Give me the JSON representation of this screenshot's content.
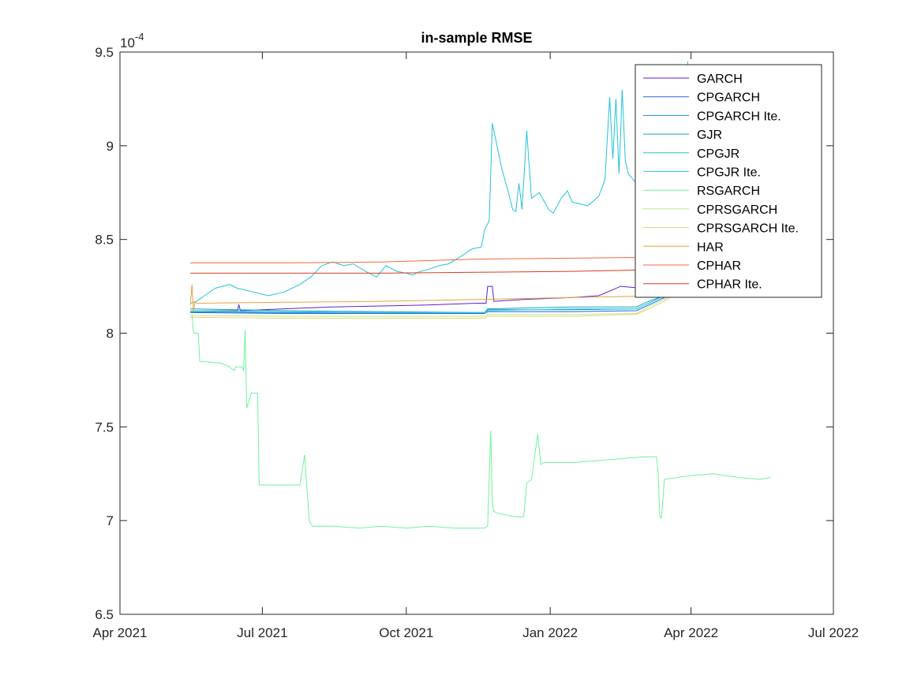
{
  "chart_data": {
    "type": "line",
    "title": "in-sample RMSE",
    "xlabel": "",
    "ylabel": "",
    "y_exponent_label": "10",
    "y_exponent_power": "-4",
    "y_scale_factor": 0.0001,
    "xlim": [
      "2021-04-01",
      "2022-07-01"
    ],
    "ylim": [
      6.5,
      9.5
    ],
    "x_ticks": [
      {
        "date": "2021-04-01",
        "label": "Apr 2021"
      },
      {
        "date": "2021-07-01",
        "label": "Jul 2021"
      },
      {
        "date": "2021-10-01",
        "label": "Oct 2021"
      },
      {
        "date": "2022-01-01",
        "label": "Jan 2022"
      },
      {
        "date": "2022-04-01",
        "label": "Apr 2022"
      },
      {
        "date": "2022-07-01",
        "label": "Jul 2022"
      }
    ],
    "y_ticks": [
      {
        "value": 6.5,
        "label": "6.5"
      },
      {
        "value": 7,
        "label": "7"
      },
      {
        "value": 7.5,
        "label": "7.5"
      },
      {
        "value": 8,
        "label": "8"
      },
      {
        "value": 8.5,
        "label": "8.5"
      },
      {
        "value": 9,
        "label": "9"
      },
      {
        "value": 9.5,
        "label": "9.5"
      }
    ],
    "grid": false,
    "legend_position": "top-right",
    "series": [
      {
        "name": "GARCH",
        "color": "#5a1fd1",
        "x": [
          "2021-05-16",
          "2021-06-15",
          "2021-06-16",
          "2021-06-17",
          "2021-07-15",
          "2021-08-15",
          "2021-09-15",
          "2021-10-15",
          "2021-11-15",
          "2021-11-21",
          "2021-11-22",
          "2021-11-25",
          "2021-11-26",
          "2021-12-15",
          "2022-01-15",
          "2022-02-01",
          "2022-02-15",
          "2022-03-01",
          "2022-03-15"
        ],
        "y": [
          8.12,
          8.12,
          8.15,
          8.12,
          8.13,
          8.14,
          8.145,
          8.15,
          8.16,
          8.16,
          8.25,
          8.25,
          8.17,
          8.18,
          8.19,
          8.2,
          8.25,
          8.24,
          8.23
        ]
      },
      {
        "name": "CPGARCH",
        "color": "#2660e8",
        "x": [
          "2021-05-16",
          "2021-07-15",
          "2021-09-15",
          "2021-11-20",
          "2021-11-22",
          "2022-01-15",
          "2022-02-25",
          "2022-03-05",
          "2022-03-15",
          "2022-03-20"
        ],
        "y": [
          8.11,
          8.105,
          8.105,
          8.105,
          8.115,
          8.115,
          8.12,
          8.15,
          8.19,
          8.22
        ]
      },
      {
        "name": "CPGARCH Ite.",
        "color": "#1d8cd2",
        "x": [
          "2021-05-16",
          "2021-07-15",
          "2021-09-15",
          "2021-11-20",
          "2021-11-22",
          "2022-01-15",
          "2022-02-25",
          "2022-03-05",
          "2022-03-15",
          "2022-03-20"
        ],
        "y": [
          8.115,
          8.11,
          8.11,
          8.11,
          8.125,
          8.125,
          8.13,
          8.16,
          8.2,
          8.23
        ]
      },
      {
        "name": "GJR",
        "color": "#1aa6bd",
        "x": [
          "2021-05-16",
          "2021-07-15",
          "2021-09-15",
          "2021-11-20",
          "2021-11-22",
          "2022-01-15",
          "2022-02-25",
          "2022-03-05",
          "2022-03-15",
          "2022-03-20"
        ],
        "y": [
          8.13,
          8.12,
          8.115,
          8.11,
          8.13,
          8.14,
          8.14,
          8.17,
          8.2,
          8.24
        ]
      },
      {
        "name": "CPGJR",
        "color": "#22c3d5",
        "x": [
          "2021-05-16",
          "2021-05-20",
          "2021-05-25",
          "2021-06-01",
          "2021-06-10",
          "2021-06-15",
          "2021-06-25",
          "2021-07-05",
          "2021-07-15",
          "2021-07-25",
          "2021-08-01",
          "2021-08-08",
          "2021-08-15",
          "2021-08-22",
          "2021-08-28",
          "2021-09-05",
          "2021-09-12",
          "2021-09-18",
          "2021-09-25",
          "2021-10-01",
          "2021-10-05",
          "2021-10-10",
          "2021-10-15",
          "2021-10-22",
          "2021-10-28",
          "2021-11-05",
          "2021-11-12",
          "2021-11-18",
          "2021-11-20",
          "2021-11-23",
          "2021-11-25",
          "2021-12-01",
          "2021-12-05",
          "2021-12-08",
          "2021-12-10",
          "2021-12-12",
          "2021-12-14",
          "2021-12-17",
          "2021-12-20",
          "2021-12-25",
          "2021-12-31",
          "2022-01-03",
          "2022-01-08",
          "2022-01-12",
          "2022-01-15",
          "2022-01-25",
          "2022-02-01",
          "2022-02-05",
          "2022-02-08",
          "2022-02-10",
          "2022-02-12",
          "2022-02-14",
          "2022-02-16",
          "2022-02-18",
          "2022-02-20",
          "2022-02-25",
          "2022-03-01",
          "2022-03-05",
          "2022-03-10",
          "2022-03-15",
          "2022-03-20",
          "2022-03-26",
          "2022-03-30"
        ],
        "y": [
          8.16,
          8.17,
          8.2,
          8.24,
          8.26,
          8.24,
          8.22,
          8.2,
          8.22,
          8.26,
          8.3,
          8.36,
          8.38,
          8.36,
          8.37,
          8.33,
          8.3,
          8.36,
          8.33,
          8.32,
          8.31,
          8.33,
          8.34,
          8.36,
          8.37,
          8.41,
          8.45,
          8.46,
          8.55,
          8.6,
          9.12,
          8.88,
          8.76,
          8.66,
          8.65,
          8.8,
          8.66,
          9.08,
          8.72,
          8.75,
          8.66,
          8.64,
          8.72,
          8.76,
          8.7,
          8.68,
          8.73,
          8.82,
          9.26,
          8.93,
          9.25,
          8.85,
          9.3,
          8.92,
          8.85,
          8.8,
          8.77,
          8.76,
          8.72,
          8.7,
          8.66,
          9.1,
          9.45
        ]
      },
      {
        "name": "CPGJR Ite.",
        "color": "#2fd6cf",
        "x": [
          "2021-05-16",
          "2021-07-15",
          "2021-09-15",
          "2021-11-20",
          "2021-11-22",
          "2022-01-15",
          "2022-02-25",
          "2022-03-05",
          "2022-03-15",
          "2022-03-20"
        ],
        "y": [
          8.12,
          8.115,
          8.11,
          8.11,
          8.12,
          8.13,
          8.13,
          8.16,
          8.2,
          8.22
        ]
      },
      {
        "name": "RSGARCH",
        "color": "#6ff29a",
        "x": [
          "2021-05-17",
          "2021-05-18",
          "2021-05-21",
          "2021-05-22",
          "2021-06-05",
          "2021-06-10",
          "2021-06-13",
          "2021-06-14",
          "2021-06-18",
          "2021-06-19",
          "2021-06-20",
          "2021-06-21",
          "2021-06-24",
          "2021-06-25",
          "2021-06-28",
          "2021-06-29",
          "2021-07-25",
          "2021-07-28",
          "2021-07-31",
          "2021-08-02",
          "2021-08-15",
          "2021-09-01",
          "2021-09-15",
          "2021-10-01",
          "2021-10-15",
          "2021-11-01",
          "2021-11-15",
          "2021-11-20",
          "2021-11-22",
          "2021-11-24",
          "2021-11-25",
          "2021-11-26",
          "2021-11-28",
          "2021-12-10",
          "2021-12-15",
          "2021-12-17",
          "2021-12-20",
          "2021-12-24",
          "2021-12-26",
          "2021-12-28",
          "2022-01-15",
          "2022-02-01",
          "2022-02-15",
          "2022-03-01",
          "2022-03-10",
          "2022-03-11",
          "2022-03-12",
          "2022-03-13",
          "2022-03-15",
          "2022-04-01",
          "2022-04-15",
          "2022-05-01",
          "2022-05-15",
          "2022-05-22"
        ],
        "y": [
          8.1,
          8.0,
          8.0,
          7.85,
          7.84,
          7.82,
          7.8,
          7.82,
          7.82,
          7.8,
          8.02,
          7.6,
          7.68,
          7.68,
          7.68,
          7.19,
          7.19,
          7.35,
          7.0,
          6.97,
          6.97,
          6.96,
          6.97,
          6.96,
          6.97,
          6.96,
          6.96,
          6.96,
          6.97,
          7.48,
          7.1,
          7.05,
          7.04,
          7.02,
          7.02,
          7.2,
          7.22,
          7.46,
          7.3,
          7.31,
          7.31,
          7.32,
          7.33,
          7.34,
          7.34,
          7.25,
          7.03,
          7.01,
          7.22,
          7.24,
          7.25,
          7.23,
          7.22,
          7.23
        ]
      },
      {
        "name": "CPRSGARCH",
        "color": "#b4e98a",
        "x": [
          "2021-05-16",
          "2021-07-15",
          "2021-09-15",
          "2021-11-20",
          "2021-11-22",
          "2022-01-15",
          "2022-02-25",
          "2022-03-05",
          "2022-03-15",
          "2022-03-20"
        ],
        "y": [
          8.095,
          8.09,
          8.09,
          8.09,
          8.1,
          8.1,
          8.105,
          8.14,
          8.18,
          8.21
        ]
      },
      {
        "name": "CPRSGARCH Ite.",
        "color": "#e8d070",
        "x": [
          "2021-05-16",
          "2021-07-15",
          "2021-09-15",
          "2021-11-20",
          "2021-11-22",
          "2022-01-15",
          "2022-02-25",
          "2022-03-05",
          "2022-03-15",
          "2022-03-20"
        ],
        "y": [
          8.085,
          8.08,
          8.08,
          8.08,
          8.09,
          8.09,
          8.1,
          8.13,
          8.17,
          8.2
        ]
      },
      {
        "name": "HAR",
        "color": "#e8a23a",
        "x": [
          "2021-05-16",
          "2021-05-17",
          "2021-05-18",
          "2021-05-19",
          "2021-05-20",
          "2021-07-15",
          "2021-09-15",
          "2021-11-15",
          "2022-01-15",
          "2022-03-15",
          "2022-03-25"
        ],
        "y": [
          8.15,
          8.26,
          8.12,
          8.17,
          8.16,
          8.165,
          8.17,
          8.18,
          8.19,
          8.2,
          8.2
        ]
      },
      {
        "name": "CPHAR",
        "color": "#f06a3c",
        "x": [
          "2021-05-16",
          "2021-07-15",
          "2021-09-15",
          "2021-11-15",
          "2022-01-15",
          "2022-03-15",
          "2022-03-25"
        ],
        "y": [
          8.375,
          8.375,
          8.38,
          8.395,
          8.4,
          8.405,
          8.405
        ]
      },
      {
        "name": "CPHAR Ite.",
        "color": "#d93a24",
        "x": [
          "2021-05-16",
          "2021-07-15",
          "2021-09-15",
          "2021-11-15",
          "2022-01-15",
          "2022-03-15",
          "2022-03-25"
        ],
        "y": [
          8.32,
          8.32,
          8.32,
          8.325,
          8.33,
          8.34,
          8.34
        ]
      }
    ]
  }
}
